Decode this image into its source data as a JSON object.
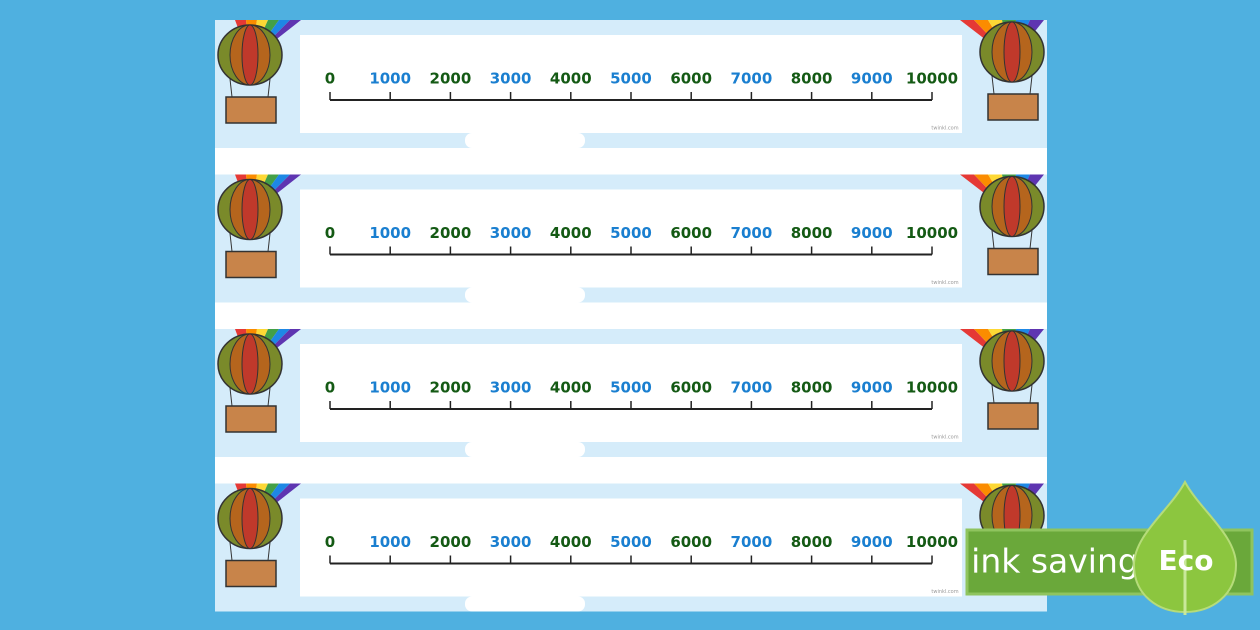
{
  "strips": [
    {
      "labels": [
        0,
        1000,
        2000,
        3000,
        4000,
        5000,
        6000,
        7000,
        8000,
        9000,
        10000
      ],
      "watermark": "twinkl.com"
    },
    {
      "labels": [
        0,
        1000,
        2000,
        3000,
        4000,
        5000,
        6000,
        7000,
        8000,
        9000,
        10000
      ],
      "watermark": "twinkl.com"
    },
    {
      "labels": [
        0,
        1000,
        2000,
        3000,
        4000,
        5000,
        6000,
        7000,
        8000,
        9000,
        10000
      ],
      "watermark": "twinkl.com"
    },
    {
      "labels": [
        0,
        1000,
        2000,
        3000,
        4000,
        5000,
        6000,
        7000,
        8000,
        9000,
        10000
      ],
      "watermark": "twinkl.com"
    }
  ],
  "badge": {
    "text": "ink saving",
    "eco": "Eco"
  }
}
